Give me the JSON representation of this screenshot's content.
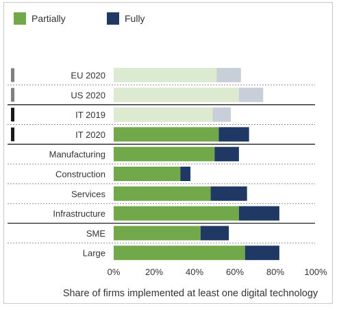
{
  "chart_data": {
    "type": "bar",
    "orientation": "horizontal",
    "stacked": true,
    "categories": [
      "EU 2020",
      "US 2020",
      "IT 2019",
      "IT 2020",
      "Manufacturing",
      "Construction",
      "Services",
      "Infrastructure",
      "SME",
      "Large"
    ],
    "series": [
      {
        "name": "Partially",
        "values": [
          51,
          62,
          49,
          52,
          50,
          33,
          48,
          62,
          43,
          65
        ]
      },
      {
        "name": "Fully",
        "values": [
          12,
          12,
          9,
          15,
          12,
          5,
          18,
          20,
          14,
          17
        ]
      }
    ],
    "faded_categories": [
      "EU 2020",
      "US 2020",
      "IT 2019"
    ],
    "xlabel": "Share of firms implemented at least one digital technology",
    "ylabel": "",
    "xlim": [
      0,
      100
    ],
    "xticks": [
      "0%",
      "20%",
      "40%",
      "60%",
      "80%",
      "100%"
    ],
    "legend_position": "top-left",
    "colors": {
      "partially": "#71a84a",
      "fully": "#1f3864",
      "partially_faded": "#dcebd0",
      "fully_faded": "#c8cfd9",
      "marker_gray": "#7f7f7f",
      "marker_black": "#1a1a1a"
    },
    "row_markers": [
      "gray",
      "gray",
      "black",
      "black",
      "",
      "",
      "",
      "",
      "",
      ""
    ],
    "solid_separators_after": [
      "US 2020",
      "IT 2020",
      "Infrastructure"
    ]
  }
}
